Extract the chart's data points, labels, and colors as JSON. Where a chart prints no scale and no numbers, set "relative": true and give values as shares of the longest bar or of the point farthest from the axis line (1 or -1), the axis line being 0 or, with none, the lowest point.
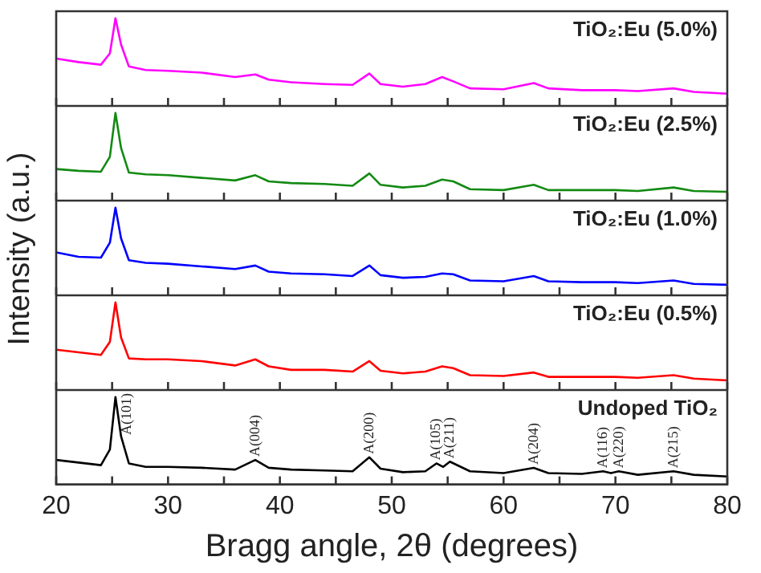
{
  "chart_data": [
    {
      "type": "line",
      "relative": true,
      "xlim": [
        20,
        80
      ],
      "xticks": [
        20,
        {
          "value": 25,
          "label": null
        },
        30,
        {
          "value": 35,
          "label": null
        },
        40,
        {
          "value": 45,
          "label": null
        },
        50,
        {
          "value": 55,
          "label": null
        },
        60,
        {
          "value": 65,
          "label": null
        },
        70,
        {
          "value": 75,
          "label": null
        },
        80
      ],
      "tick_labels": false,
      "x": [
        20,
        22,
        24,
        24.8,
        25.3,
        25.8,
        26.5,
        28,
        30,
        33,
        36,
        37.8,
        39,
        41,
        44,
        46.5,
        48,
        49,
        51,
        53,
        54.5,
        55.5,
        57,
        60,
        62.7,
        64,
        67,
        70,
        72,
        75.2,
        77,
        80
      ],
      "series": [
        {
          "name": "TiO₂:Eu (5.0%)",
          "color": "#ff00ff",
          "values": [
            0.54,
            0.5,
            0.47,
            0.6,
            1,
            0.7,
            0.45,
            0.41,
            0.4,
            0.38,
            0.33,
            0.36,
            0.3,
            0.27,
            0.25,
            0.24,
            0.37,
            0.25,
            0.22,
            0.25,
            0.33,
            0.28,
            0.2,
            0.19,
            0.26,
            0.2,
            0.18,
            0.18,
            0.17,
            0.2,
            0.16,
            0.14
          ]
        }
      ]
    },
    {
      "type": "line",
      "relative": true,
      "xlim": [
        20,
        80
      ],
      "xticks": [
        20,
        {
          "value": 25,
          "label": null
        },
        30,
        {
          "value": 35,
          "label": null
        },
        40,
        {
          "value": 45,
          "label": null
        },
        50,
        {
          "value": 55,
          "label": null
        },
        60,
        {
          "value": 65,
          "label": null
        },
        70,
        {
          "value": 75,
          "label": null
        },
        80
      ],
      "tick_labels": false,
      "x": [
        20,
        22,
        24,
        24.8,
        25.3,
        25.8,
        26.5,
        28,
        30,
        33,
        36,
        37.8,
        39,
        41,
        44,
        46.5,
        48,
        49,
        51,
        53,
        54.5,
        55.5,
        57,
        60,
        62.7,
        64,
        67,
        70,
        72,
        75.2,
        77,
        80
      ],
      "series": [
        {
          "name": "TiO₂:Eu (2.5%)",
          "color": "#138a13",
          "values": [
            0.36,
            0.34,
            0.33,
            0.5,
            1,
            0.6,
            0.32,
            0.3,
            0.29,
            0.26,
            0.23,
            0.29,
            0.22,
            0.2,
            0.19,
            0.17,
            0.31,
            0.18,
            0.15,
            0.17,
            0.24,
            0.22,
            0.13,
            0.12,
            0.18,
            0.12,
            0.12,
            0.12,
            0.11,
            0.15,
            0.11,
            0.1
          ]
        }
      ]
    },
    {
      "type": "line",
      "relative": true,
      "ylabel": "Intensity (a.u.)",
      "xlim": [
        20,
        80
      ],
      "xticks": [
        20,
        {
          "value": 25,
          "label": null
        },
        30,
        {
          "value": 35,
          "label": null
        },
        40,
        {
          "value": 45,
          "label": null
        },
        50,
        {
          "value": 55,
          "label": null
        },
        60,
        {
          "value": 65,
          "label": null
        },
        70,
        {
          "value": 75,
          "label": null
        },
        80
      ],
      "tick_labels": false,
      "x": [
        20,
        22,
        24,
        24.8,
        25.3,
        25.8,
        26.5,
        28,
        30,
        33,
        36,
        37.8,
        39,
        41,
        44,
        46.5,
        48,
        49,
        51,
        53,
        54.5,
        55.5,
        57,
        60,
        62.7,
        64,
        67,
        70,
        72,
        75.2,
        77,
        80
      ],
      "series": [
        {
          "name": "TiO₂:Eu (1.0%)",
          "color": "#0000ff",
          "values": [
            0.49,
            0.44,
            0.43,
            0.6,
            1,
            0.65,
            0.4,
            0.37,
            0.36,
            0.33,
            0.3,
            0.34,
            0.27,
            0.25,
            0.24,
            0.22,
            0.34,
            0.23,
            0.2,
            0.21,
            0.25,
            0.24,
            0.17,
            0.16,
            0.22,
            0.16,
            0.15,
            0.15,
            0.14,
            0.17,
            0.13,
            0.12
          ]
        }
      ]
    },
    {
      "type": "line",
      "relative": true,
      "xlim": [
        20,
        80
      ],
      "xticks": [
        20,
        {
          "value": 25,
          "label": null
        },
        30,
        {
          "value": 35,
          "label": null
        },
        40,
        {
          "value": 45,
          "label": null
        },
        50,
        {
          "value": 55,
          "label": null
        },
        60,
        {
          "value": 65,
          "label": null
        },
        70,
        {
          "value": 75,
          "label": null
        },
        80
      ],
      "tick_labels": false,
      "x": [
        20,
        22,
        24,
        24.8,
        25.3,
        25.8,
        26.5,
        28,
        30,
        33,
        36,
        37.8,
        39,
        41,
        44,
        46.5,
        48,
        49,
        51,
        53,
        54.5,
        55.5,
        57,
        60,
        62.7,
        64,
        67,
        70,
        72,
        75.2,
        77,
        80
      ],
      "series": [
        {
          "name": "TiO₂:Eu (0.5%)",
          "color": "#ff0000",
          "values": [
            0.46,
            0.43,
            0.4,
            0.55,
            1,
            0.6,
            0.36,
            0.35,
            0.35,
            0.33,
            0.28,
            0.35,
            0.27,
            0.23,
            0.23,
            0.21,
            0.33,
            0.22,
            0.19,
            0.21,
            0.27,
            0.25,
            0.17,
            0.16,
            0.2,
            0.15,
            0.15,
            0.15,
            0.14,
            0.17,
            0.13,
            0.11
          ]
        }
      ]
    },
    {
      "type": "line",
      "relative": true,
      "xlabel": "Bragg angle, 2θ (degrees)",
      "xlim": [
        20,
        80
      ],
      "xticks": [
        20,
        {
          "value": 25,
          "label": null
        },
        30,
        {
          "value": 35,
          "label": null
        },
        40,
        {
          "value": 45,
          "label": null
        },
        50,
        {
          "value": 55,
          "label": null
        },
        60,
        {
          "value": 65,
          "label": null
        },
        70,
        {
          "value": 75,
          "label": null
        },
        80
      ],
      "x": [
        20,
        22,
        24,
        24.8,
        25.3,
        25.8,
        26.5,
        28,
        30,
        33,
        36,
        37.8,
        39,
        41,
        44,
        46.5,
        48,
        49,
        51,
        53,
        54,
        54.6,
        55.2,
        57,
        60,
        62.7,
        64,
        67,
        68.9,
        69.6,
        70.3,
        72,
        75.2,
        77,
        80
      ],
      "series": [
        {
          "name": "Undoped TiO₂",
          "color": "#000000",
          "values": [
            0.28,
            0.25,
            0.22,
            0.4,
            1,
            0.55,
            0.24,
            0.2,
            0.2,
            0.19,
            0.17,
            0.28,
            0.19,
            0.17,
            0.16,
            0.15,
            0.31,
            0.18,
            0.14,
            0.15,
            0.24,
            0.2,
            0.26,
            0.15,
            0.13,
            0.19,
            0.13,
            0.12,
            0.15,
            0.13,
            0.15,
            0.11,
            0.15,
            0.11,
            0.09
          ]
        }
      ],
      "annotations": [
        {
          "text": "A(101)",
          "x": 25.3,
          "y": 1
        },
        {
          "text": "A(004)",
          "x": 37.8,
          "y": 0.28
        },
        {
          "text": "A(200)",
          "x": 48,
          "y": 0.31
        },
        {
          "text": "A(105)",
          "x": 54,
          "y": 0.24
        },
        {
          "text": "A(211)",
          "x": 55.2,
          "y": 0.26
        },
        {
          "text": "A(204)",
          "x": 62.7,
          "y": 0.19
        },
        {
          "text": "A(116)",
          "x": 68.9,
          "y": 0.15
        },
        {
          "text": "A(220)",
          "x": 70.3,
          "y": 0.15
        },
        {
          "text": "A(215)",
          "x": 75.2,
          "y": 0.15
        }
      ]
    }
  ]
}
